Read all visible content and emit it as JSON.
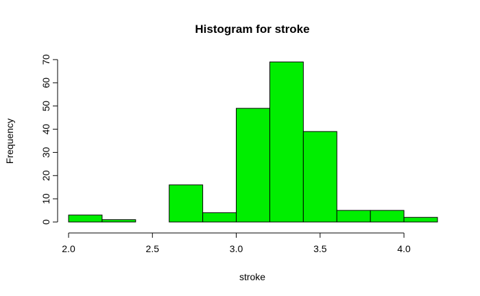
{
  "chart_data": {
    "type": "bar",
    "subtype": "histogram",
    "title": "Histogram for stroke",
    "xlabel": "stroke",
    "ylabel": "Frequency",
    "bar_color": "#00ee00",
    "border_color": "#000000",
    "bins": [
      {
        "start": 2.0,
        "end": 2.2,
        "count": 3
      },
      {
        "start": 2.2,
        "end": 2.4,
        "count": 1
      },
      {
        "start": 2.4,
        "end": 2.6,
        "count": 0
      },
      {
        "start": 2.6,
        "end": 2.8,
        "count": 16
      },
      {
        "start": 2.8,
        "end": 3.0,
        "count": 4
      },
      {
        "start": 3.0,
        "end": 3.2,
        "count": 49
      },
      {
        "start": 3.2,
        "end": 3.4,
        "count": 69
      },
      {
        "start": 3.4,
        "end": 3.6,
        "count": 39
      },
      {
        "start": 3.6,
        "end": 3.8,
        "count": 5
      },
      {
        "start": 3.8,
        "end": 4.0,
        "count": 5
      },
      {
        "start": 4.0,
        "end": 4.2,
        "count": 2
      }
    ],
    "xlim": [
      2.0,
      4.2
    ],
    "ylim": [
      0,
      70
    ],
    "x_ticks": [
      2.0,
      2.5,
      3.0,
      3.5,
      4.0
    ],
    "x_tick_labels": [
      "2.0",
      "2.5",
      "3.0",
      "3.5",
      "4.0"
    ],
    "y_ticks": [
      0,
      10,
      20,
      30,
      40,
      50,
      60,
      70
    ],
    "y_tick_labels": [
      "0",
      "10",
      "20",
      "30",
      "40",
      "50",
      "60",
      "70"
    ],
    "grid": false
  }
}
